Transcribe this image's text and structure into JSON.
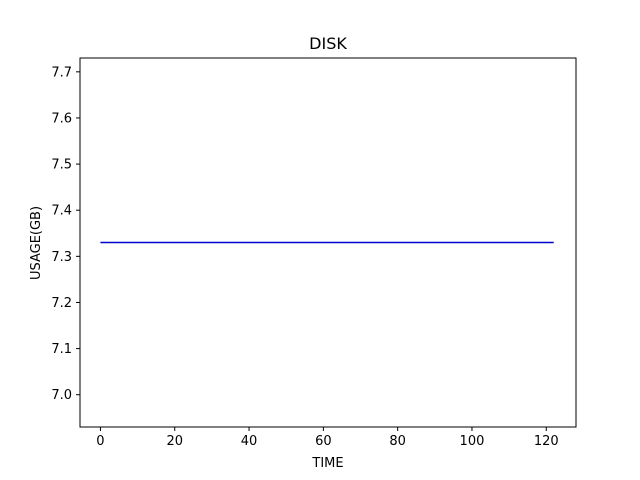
{
  "chart_data": {
    "type": "line",
    "title": "DISK",
    "xlabel": "TIME",
    "ylabel": "USAGE(GB)",
    "xlim": [
      -5.5,
      128
    ],
    "ylim": [
      6.93,
      7.73
    ],
    "xticks": [
      0,
      20,
      40,
      60,
      80,
      100,
      120
    ],
    "yticks": [
      7.0,
      7.1,
      7.2,
      7.3,
      7.4,
      7.5,
      7.6,
      7.7
    ],
    "ytick_labels": [
      "7.0",
      "7.1",
      "7.2",
      "7.3",
      "7.4",
      "7.5",
      "7.6",
      "7.7"
    ],
    "grid": false,
    "series": [
      {
        "color": "#0000cc",
        "x": [
          0,
          122
        ],
        "y": [
          7.33,
          7.33
        ]
      }
    ]
  }
}
